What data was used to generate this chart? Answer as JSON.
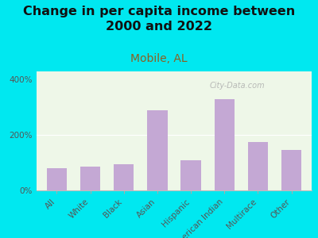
{
  "title": "Change in per capita income between\n2000 and 2022",
  "subtitle": "Mobile, AL",
  "categories": [
    "All",
    "White",
    "Black",
    "Asian",
    "Hispanic",
    "American Indian",
    "Multirace",
    "Other"
  ],
  "values": [
    80,
    85,
    95,
    290,
    110,
    330,
    175,
    145
  ],
  "bar_color": "#c4a8d4",
  "background_outer": "#00e8f0",
  "plot_bg": "#eef7e8",
  "title_color": "#111111",
  "subtitle_color": "#8b6020",
  "ylim": [
    0,
    430
  ],
  "yticks": [
    0,
    200,
    400
  ],
  "watermark": "City-Data.com",
  "title_fontsize": 11.5,
  "subtitle_fontsize": 10,
  "tick_fontsize": 7.5,
  "watermark_fontsize": 7
}
